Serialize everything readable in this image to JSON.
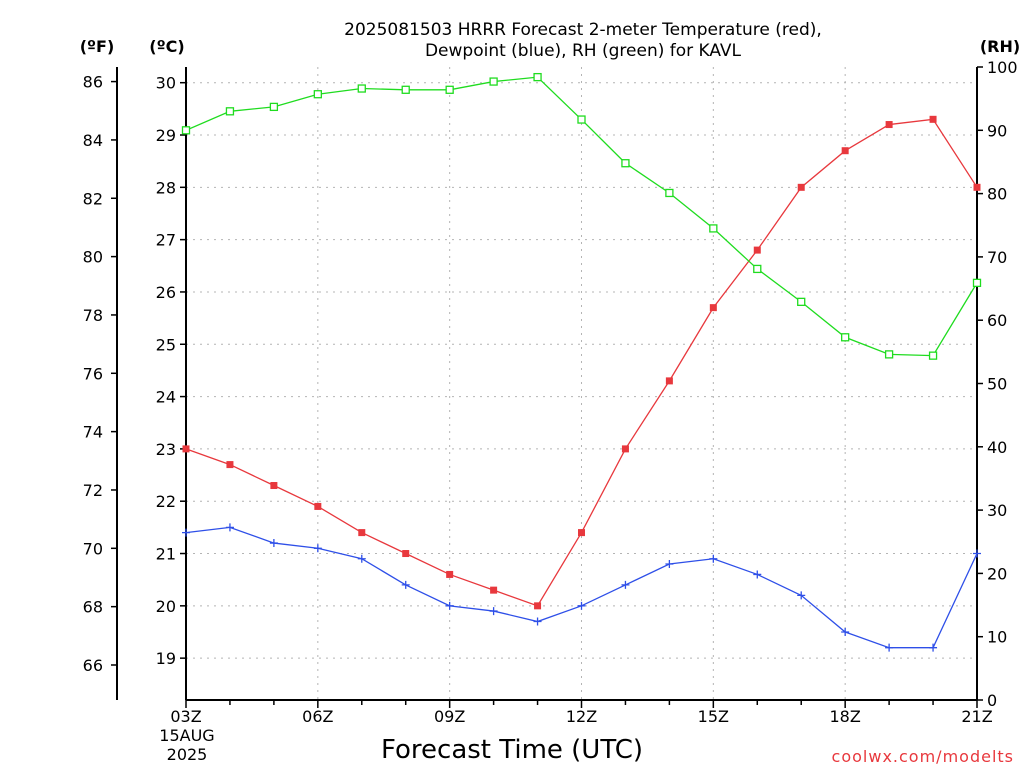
{
  "chart_data": {
    "type": "line",
    "title": [
      "2025081503 HRRR Forecast 2-meter Temperature (red),",
      "Dewpoint (blue), RH (green) for KAVL"
    ],
    "xlabel": "Forecast Time (UTC)",
    "x": [
      "03Z",
      "04Z",
      "05Z",
      "06Z",
      "07Z",
      "08Z",
      "09Z",
      "10Z",
      "11Z",
      "12Z",
      "13Z",
      "14Z",
      "15Z",
      "16Z",
      "17Z",
      "18Z",
      "19Z",
      "20Z",
      "21Z"
    ],
    "x_tick_labels": [
      "03Z",
      "06Z",
      "09Z",
      "12Z",
      "15Z",
      "18Z",
      "21Z"
    ],
    "x_date_labels": [
      "15AUG",
      "2025"
    ],
    "units": {
      "fahrenheit": "(ºF)",
      "celsius": "(ºC)",
      "rh": "(RH)"
    },
    "y_celsius": {
      "lim": [
        18.2,
        30.3
      ],
      "ticks": [
        19,
        20,
        21,
        22,
        23,
        24,
        25,
        26,
        27,
        28,
        29,
        30
      ]
    },
    "y_fahrenheit": {
      "lim": [
        64.8,
        86.5
      ],
      "ticks": [
        66,
        68,
        70,
        72,
        74,
        76,
        78,
        80,
        82,
        84,
        86
      ]
    },
    "y_rh": {
      "lim": [
        0,
        100
      ],
      "ticks": [
        0,
        10,
        20,
        30,
        40,
        50,
        60,
        70,
        80,
        90,
        100
      ]
    },
    "grid": true,
    "series": [
      {
        "name": "Temperature",
        "axis": "celsius",
        "color": "#e8383d",
        "marker": "filled-square",
        "values": [
          23.0,
          22.7,
          22.3,
          21.9,
          21.4,
          21.0,
          20.6,
          20.3,
          20.0,
          21.4,
          23.0,
          24.3,
          25.7,
          26.8,
          28.0,
          28.7,
          29.2,
          29.3,
          28.0
        ]
      },
      {
        "name": "Dewpoint",
        "axis": "celsius",
        "color": "#2e4fe8",
        "marker": "plus",
        "values": [
          21.4,
          21.5,
          21.2,
          21.1,
          20.9,
          20.4,
          20.0,
          19.9,
          19.7,
          20.0,
          20.4,
          20.8,
          20.9,
          20.6,
          20.2,
          19.5,
          19.2,
          19.2,
          21.0
        ]
      },
      {
        "name": "RH",
        "axis": "rh",
        "color": "#1fdc1f",
        "marker": "open-square",
        "values": [
          90.0,
          93.0,
          93.7,
          95.7,
          96.6,
          96.4,
          96.4,
          97.7,
          98.4,
          91.7,
          84.8,
          80.1,
          74.5,
          68.1,
          62.9,
          57.3,
          54.6,
          54.4,
          65.9
        ]
      }
    ]
  },
  "credit": "coolwx.com/modelts"
}
